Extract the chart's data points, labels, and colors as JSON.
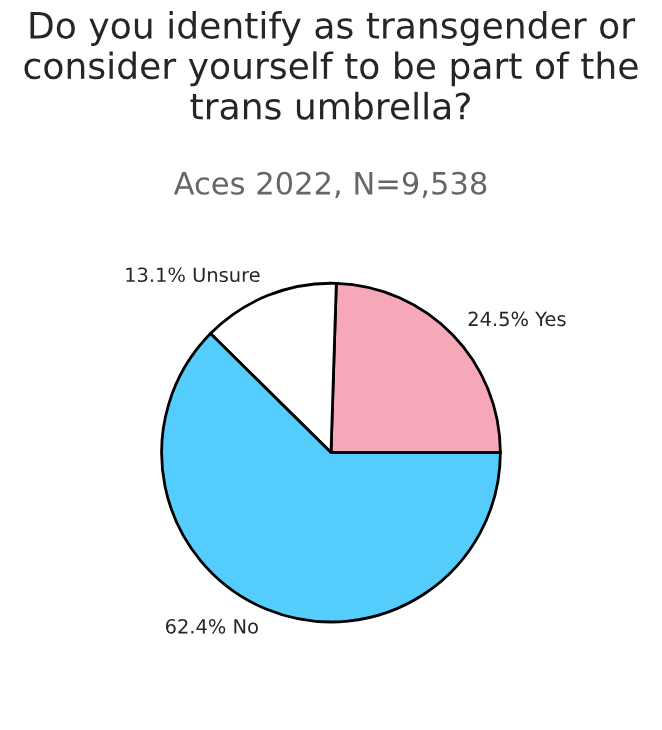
{
  "chart_data": {
    "type": "pie",
    "title": "Do you identify as transgender or consider yourself to be part of the trans umbrella?",
    "subtitle": "Aces 2022, N=9,538",
    "categories": [
      "Yes",
      "Unsure",
      "No"
    ],
    "values": [
      24.5,
      13.1,
      62.4
    ],
    "value_labels": [
      "24.5%",
      "13.1%",
      "62.4%"
    ],
    "colors": [
      "#f7a8b8",
      "#ffffff",
      "#55cdfc"
    ]
  }
}
